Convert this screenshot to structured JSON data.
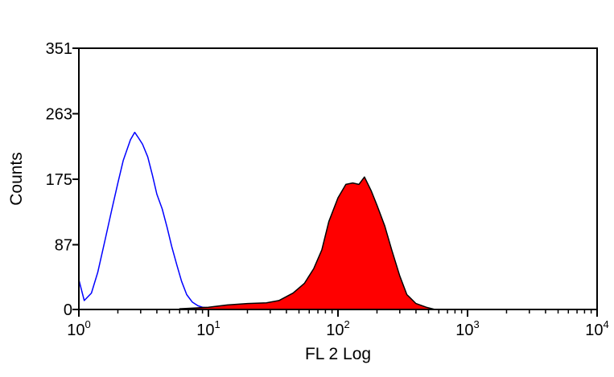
{
  "chart_data": {
    "type": "area",
    "title": "",
    "xlabel": "FL 2 Log",
    "ylabel": "Counts",
    "x_scale": "log",
    "xlim": [
      1,
      10000
    ],
    "ylim": [
      0,
      351
    ],
    "x_ticks": [
      {
        "base": "10",
        "exp": "0",
        "value": 1
      },
      {
        "base": "10",
        "exp": "1",
        "value": 10
      },
      {
        "base": "10",
        "exp": "2",
        "value": 100
      },
      {
        "base": "10",
        "exp": "3",
        "value": 1000
      },
      {
        "base": "10",
        "exp": "4",
        "value": 10000
      }
    ],
    "y_ticks": [
      "0",
      "87",
      "175",
      "263",
      "351"
    ],
    "grid": false,
    "legend": "none",
    "series": [
      {
        "style": "outline",
        "color": "#0000ff",
        "x": [
          1.0,
          1.1,
          1.25,
          1.4,
          1.6,
          1.8,
          2.0,
          2.2,
          2.5,
          2.7,
          2.9,
          3.1,
          3.4,
          3.7,
          4.0,
          4.4,
          4.8,
          5.2,
          5.7,
          6.2,
          6.8,
          7.5,
          8.3,
          9.0,
          10.0,
          11.0,
          12.5
        ],
        "values": [
          40,
          12,
          22,
          50,
          95,
          135,
          170,
          200,
          228,
          238,
          230,
          222,
          205,
          180,
          155,
          135,
          110,
          85,
          60,
          38,
          20,
          10,
          5,
          3,
          2,
          1,
          0
        ]
      },
      {
        "style": "filled",
        "color": "#ff0000",
        "x": [
          6.0,
          8.0,
          10.0,
          14.0,
          20.0,
          28.0,
          35.0,
          45.0,
          55.0,
          65.0,
          75.0,
          85.0,
          100.0,
          115.0,
          130.0,
          145.0,
          160.0,
          180.0,
          200.0,
          230.0,
          260.0,
          300.0,
          340.0,
          400.0,
          480.0,
          560.0
        ],
        "values": [
          1,
          2,
          3,
          6,
          8,
          9,
          12,
          22,
          35,
          55,
          80,
          118,
          150,
          168,
          170,
          168,
          178,
          160,
          140,
          112,
          80,
          45,
          20,
          8,
          3,
          0
        ]
      }
    ]
  }
}
